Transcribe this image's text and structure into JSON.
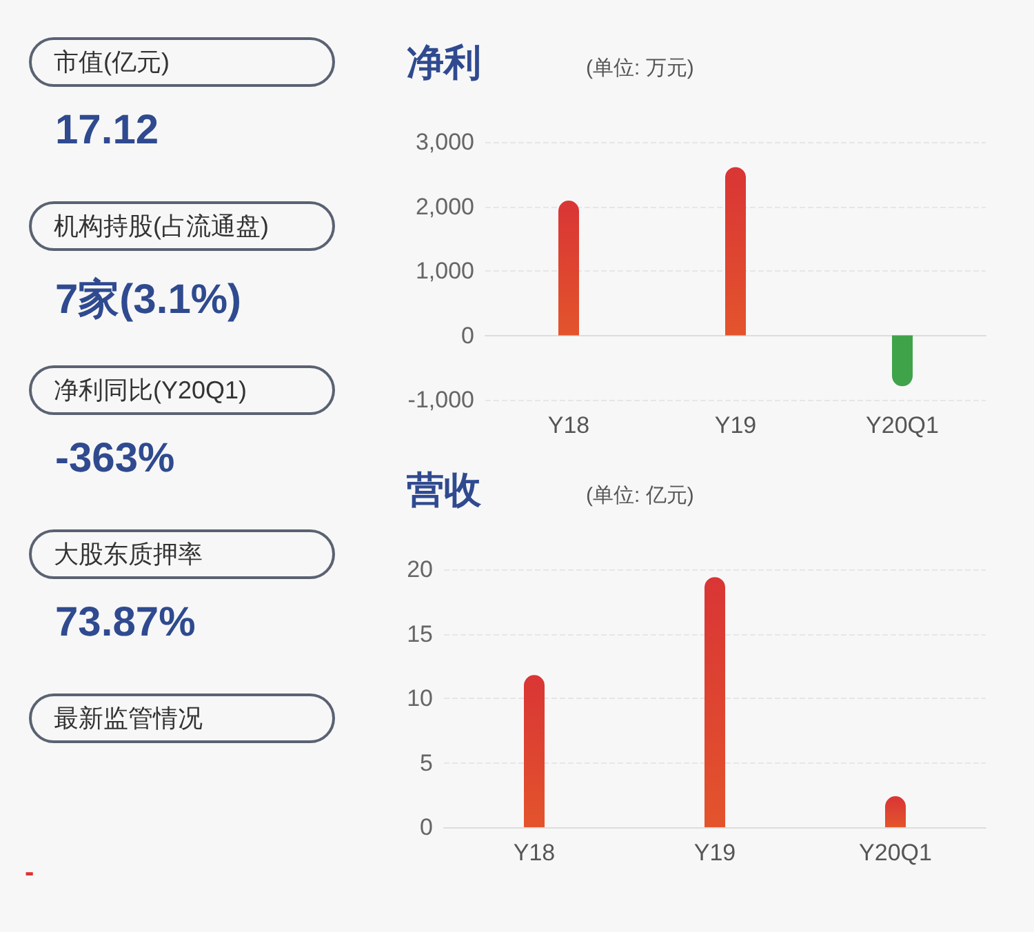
{
  "chart_data": [
    {
      "type": "other",
      "annotations": [
        "市值(亿元)",
        "17.12",
        "机构持股(占流通盘)",
        "7家(3.1%)",
        "净利同比(Y20Q1)",
        "-363%",
        "大股东质押率",
        "73.87%",
        "最新监管情况",
        "-"
      ]
    },
    {
      "type": "bar",
      "title": "净利",
      "subtitle": "(单位: 万元)",
      "categories": [
        "Y18",
        "Y19",
        "Y20Q1"
      ],
      "values": [
        2090,
        2610,
        -790
      ],
      "colors": [
        "#e3542c",
        "#e3542c",
        "#3fa34a"
      ],
      "ylim": [
        -1000,
        3000
      ],
      "yticks": [
        {
          "value": -1000,
          "label": "-1,000"
        },
        0,
        {
          "value": 1000,
          "label": "1,000"
        },
        {
          "value": 2000,
          "label": "2,000"
        },
        {
          "value": 3000,
          "label": "3,000"
        }
      ],
      "grid": "y"
    },
    {
      "type": "bar",
      "title": "营收",
      "subtitle": "(单位: 亿元)",
      "categories": [
        "Y18",
        "Y19",
        "Y20Q1"
      ],
      "values": [
        11.8,
        19.4,
        2.4
      ],
      "colors": [
        "#e3542c",
        "#e3542c",
        "#e3542c"
      ],
      "ylim": [
        0,
        20
      ],
      "yticks": [
        0,
        5,
        10,
        15,
        20
      ],
      "grid": "y"
    }
  ]
}
